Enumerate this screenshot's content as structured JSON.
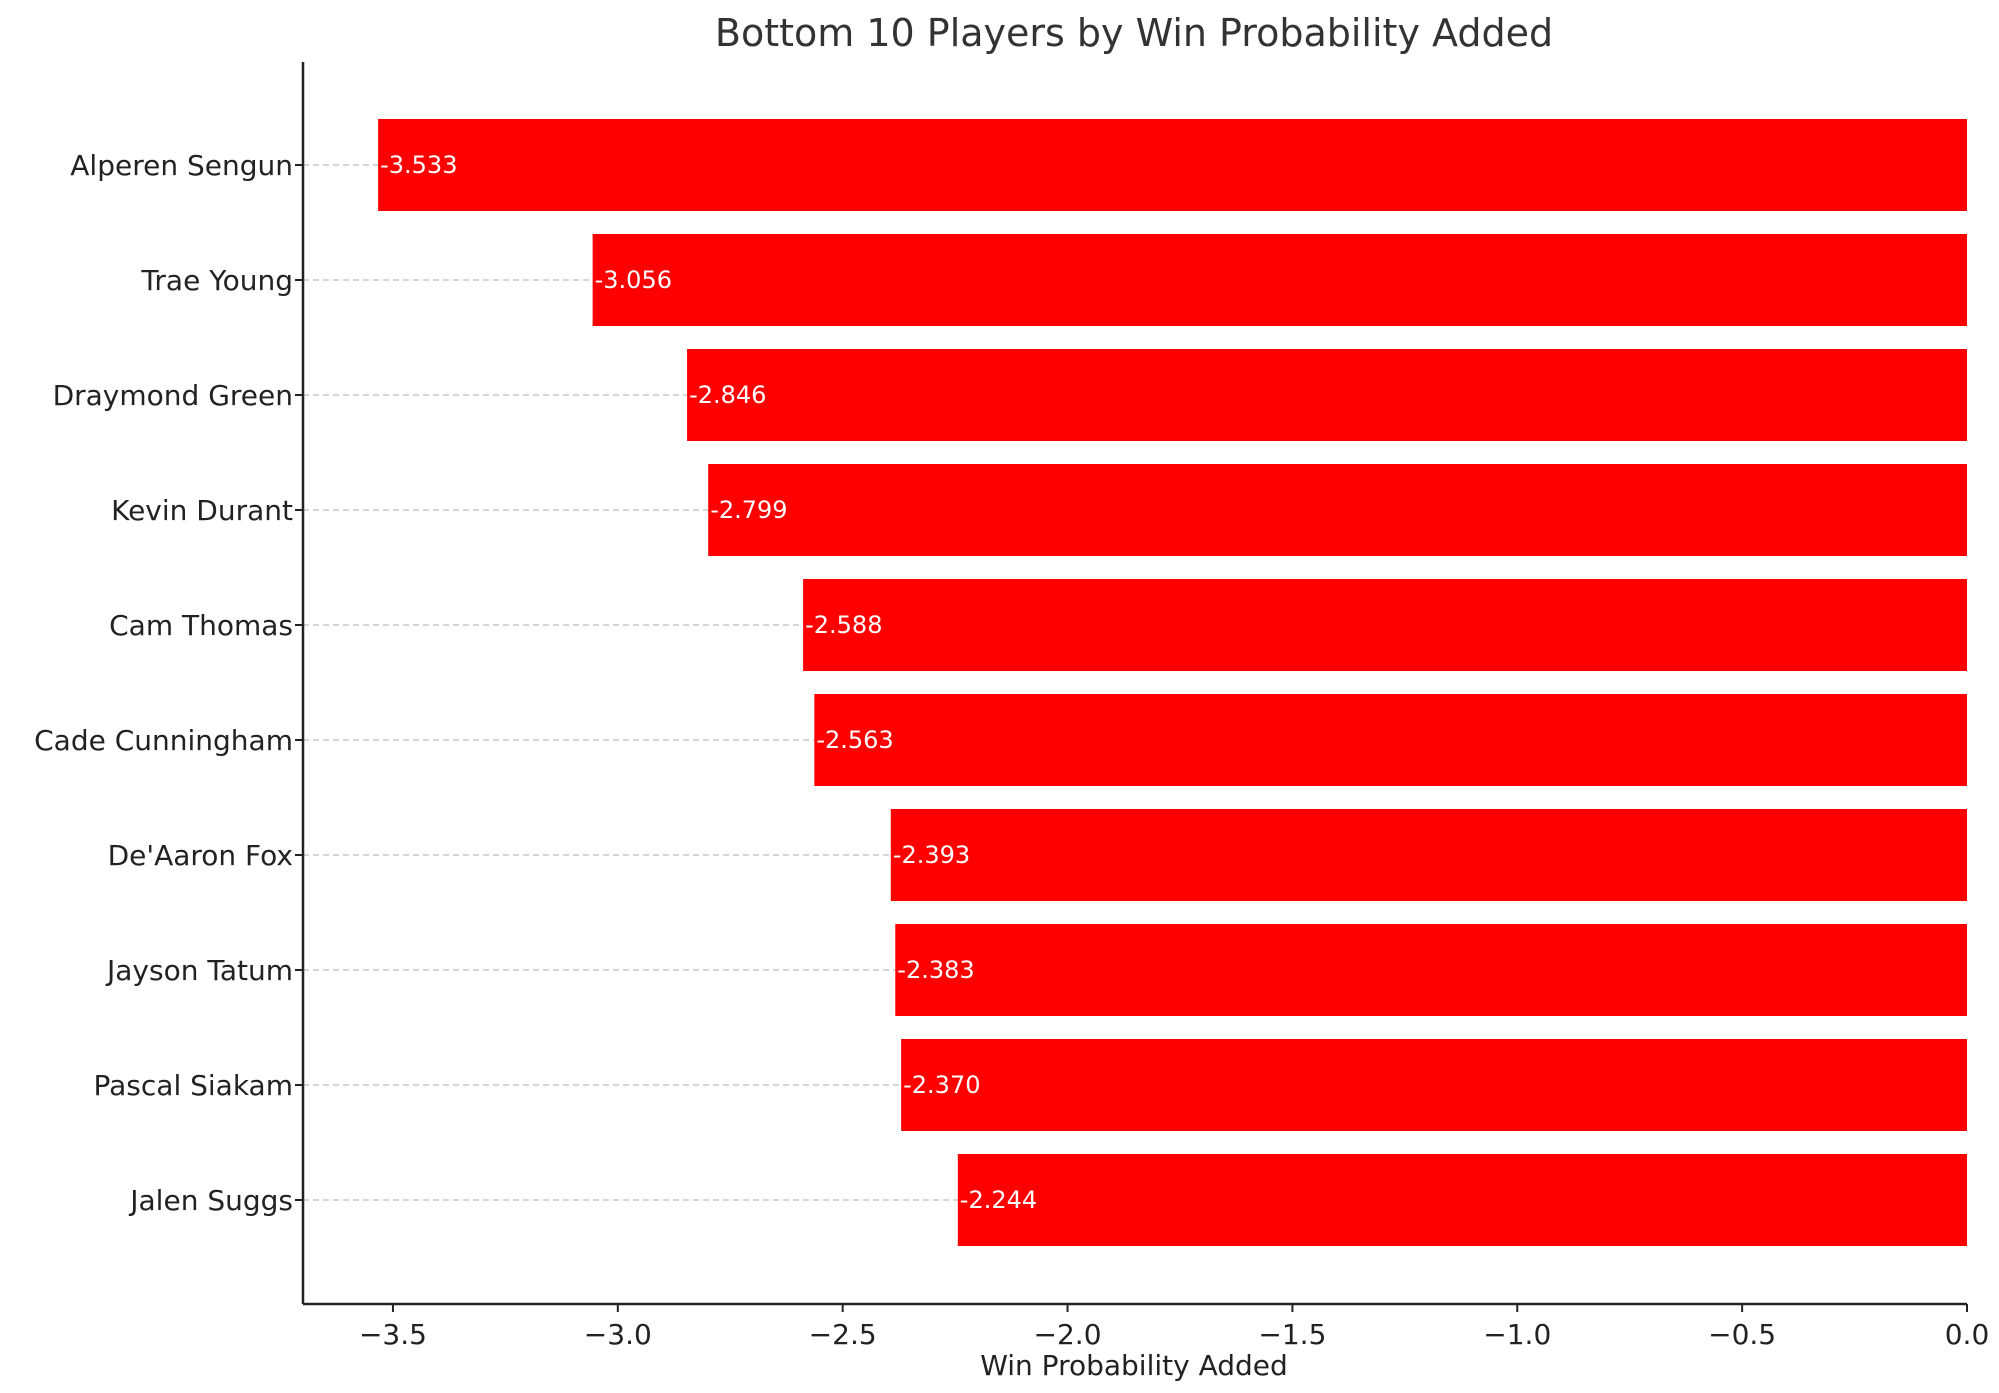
{
  "chart_data": {
    "type": "bar",
    "orientation": "horizontal",
    "title": "Bottom 10 Players by Win Probability Added",
    "xlabel": "Win Probability Added",
    "ylabel": "",
    "categories": [
      "Alperen Sengun",
      "Trae Young",
      "Draymond Green",
      "Kevin Durant",
      "Cam Thomas",
      "Cade Cunningham",
      "De'Aaron Fox",
      "Jayson Tatum",
      "Pascal Siakam",
      "Jalen Suggs"
    ],
    "values": [
      -3.533,
      -3.056,
      -2.846,
      -2.799,
      -2.588,
      -2.563,
      -2.393,
      -2.383,
      -2.37,
      -2.244
    ],
    "value_labels": [
      "-3.533",
      "-3.056",
      "-2.846",
      "-2.799",
      "-2.588",
      "-2.563",
      "-2.393",
      "-2.383",
      "-2.370",
      "-2.244"
    ],
    "xlim": [
      -3.7,
      0.0
    ],
    "xticks": [
      -3.5,
      -3.0,
      -2.5,
      -2.0,
      -1.5,
      -1.0,
      -0.5,
      0.0
    ],
    "xtick_labels": [
      "−3.5",
      "−3.0",
      "−2.5",
      "−2.0",
      "−1.5",
      "−1.0",
      "−0.5",
      "0.0"
    ],
    "bar_color": "#ff0000",
    "grid": "horizontal-dashed",
    "legend": "none"
  }
}
